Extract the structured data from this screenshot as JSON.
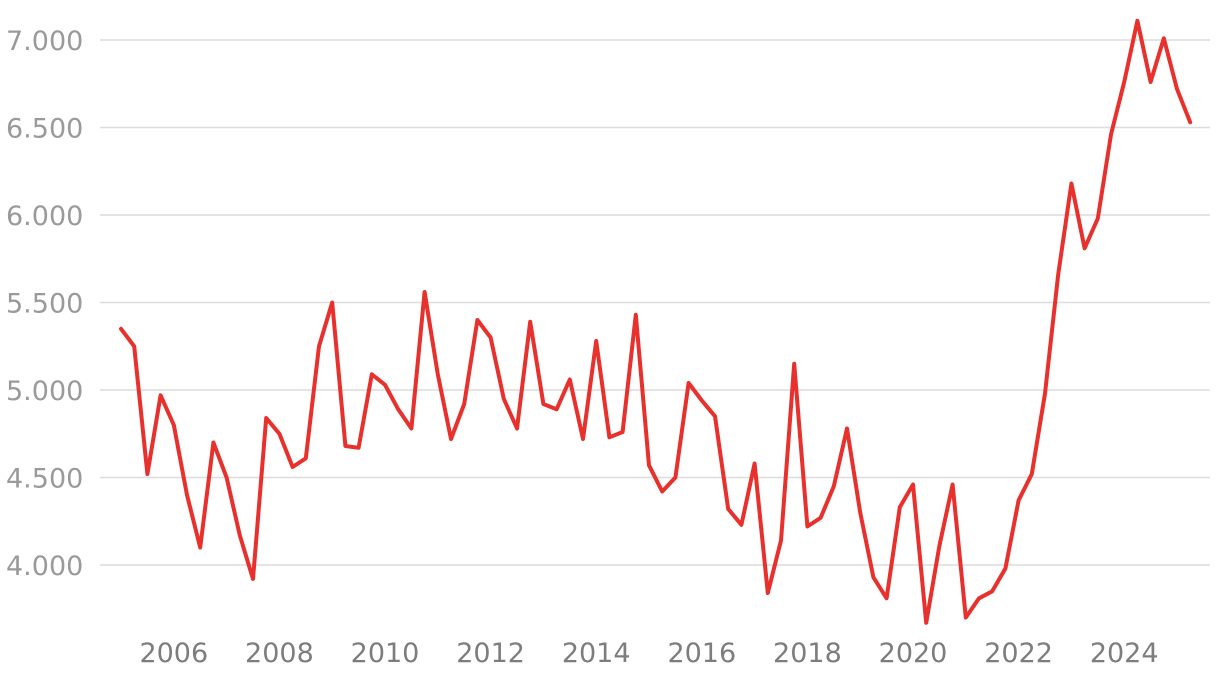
{
  "chart_data": {
    "type": "line",
    "title": "",
    "xlabel": "",
    "ylabel": "",
    "grid": true,
    "xlim": [
      2005.0,
      2025.5
    ],
    "ylim": [
      3650,
      7100
    ],
    "y_ticks": [
      {
        "value": 4000,
        "label": "4.000"
      },
      {
        "value": 4500,
        "label": "4.500"
      },
      {
        "value": 5000,
        "label": "5.000"
      },
      {
        "value": 5500,
        "label": "5.500"
      },
      {
        "value": 6000,
        "label": "6.000"
      },
      {
        "value": 6500,
        "label": "6.500"
      },
      {
        "value": 7000,
        "label": "7.000"
      }
    ],
    "x_ticks": [
      {
        "value": 2006,
        "label": "2006"
      },
      {
        "value": 2008,
        "label": "2008"
      },
      {
        "value": 2010,
        "label": "2010"
      },
      {
        "value": 2012,
        "label": "2012"
      },
      {
        "value": 2014,
        "label": "2014"
      },
      {
        "value": 2016,
        "label": "2016"
      },
      {
        "value": 2018,
        "label": "2018"
      },
      {
        "value": 2020,
        "label": "2020"
      },
      {
        "value": 2022,
        "label": "2022"
      },
      {
        "value": 2024,
        "label": "2024"
      }
    ],
    "series": [
      {
        "color": "#e8302c",
        "x": [
          2005.0,
          2005.25,
          2005.5,
          2005.75,
          2006.0,
          2006.25,
          2006.5,
          2006.75,
          2007.0,
          2007.25,
          2007.5,
          2007.75,
          2008.0,
          2008.25,
          2008.5,
          2008.75,
          2009.0,
          2009.25,
          2009.5,
          2009.75,
          2010.0,
          2010.25,
          2010.5,
          2010.75,
          2011.0,
          2011.25,
          2011.5,
          2011.75,
          2012.0,
          2012.25,
          2012.5,
          2012.75,
          2013.0,
          2013.25,
          2013.5,
          2013.75,
          2014.0,
          2014.25,
          2014.5,
          2014.75,
          2015.0,
          2015.25,
          2015.5,
          2015.75,
          2016.0,
          2016.25,
          2016.5,
          2016.75,
          2017.0,
          2017.25,
          2017.5,
          2017.75,
          2018.0,
          2018.25,
          2018.5,
          2018.75,
          2019.0,
          2019.25,
          2019.5,
          2019.75,
          2020.0,
          2020.25,
          2020.5,
          2020.75,
          2021.0,
          2021.25,
          2021.5,
          2021.75,
          2022.0,
          2022.25,
          2022.5,
          2022.75,
          2023.0,
          2023.25,
          2023.5,
          2023.75,
          2024.0,
          2024.25,
          2024.5,
          2024.75,
          2025.0,
          2025.25
        ],
        "y": [
          5350,
          5250,
          4520,
          4970,
          4800,
          4400,
          4100,
          4700,
          4500,
          4170,
          3920,
          4840,
          4750,
          4560,
          4610,
          5250,
          5500,
          4680,
          4670,
          5090,
          5030,
          4890,
          4780,
          5560,
          5090,
          4720,
          4920,
          5400,
          5300,
          4950,
          4780,
          5390,
          4920,
          4890,
          5060,
          4720,
          5280,
          4730,
          4760,
          5430,
          4570,
          4420,
          4500,
          5040,
          4940,
          4850,
          4320,
          4230,
          4580,
          3840,
          4140,
          5150,
          4220,
          4270,
          4450,
          4780,
          4300,
          3930,
          3810,
          4330,
          4460,
          3670,
          4110,
          4460,
          3700,
          3810,
          3850,
          3980,
          4370,
          4520,
          4980,
          5660,
          6180,
          5810,
          5980,
          6460,
          6760,
          7110,
          6760,
          7010,
          6720,
          6530
        ]
      }
    ]
  }
}
